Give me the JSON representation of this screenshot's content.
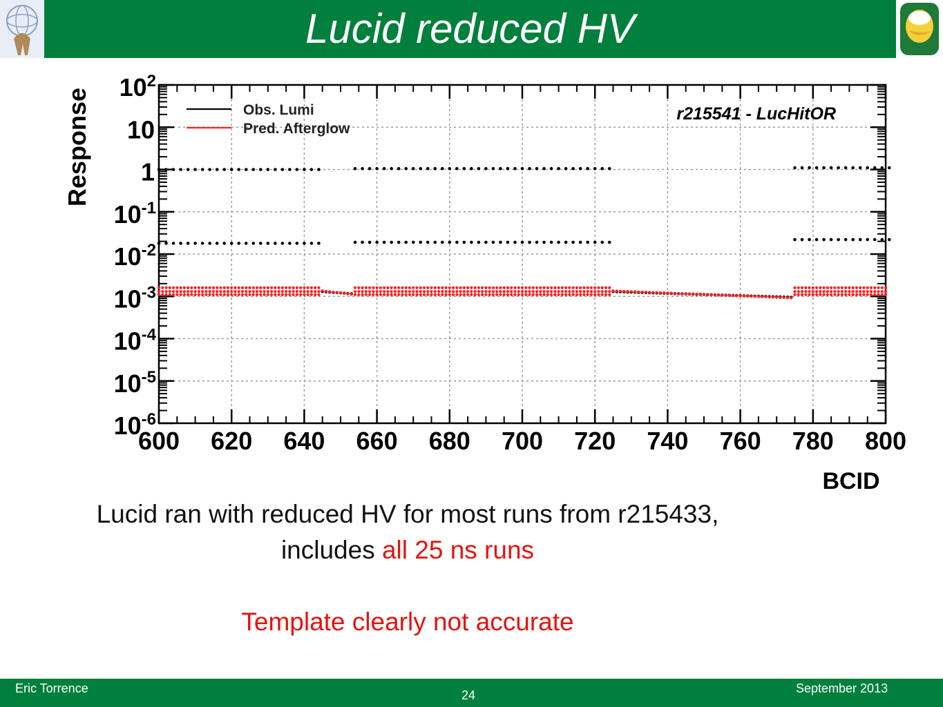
{
  "slide": {
    "title": "Lucid reduced HV",
    "line1": "Lucid ran with reduced HV for most runs from r215433,",
    "line2_a": "includes ",
    "line2_b": "all 25 ns runs",
    "line3": "Template clearly not accurate",
    "footer_left": "Eric Torrence",
    "footer_center": "24",
    "footer_right": "September 2013",
    "colors": {
      "header": "#00803c",
      "accent_red": "#e3140f"
    }
  },
  "chart_data": {
    "type": "scatter",
    "title": "r215541 - LucHitOR",
    "xlabel": "BCID",
    "ylabel": "Response",
    "xlim": [
      600,
      800
    ],
    "ylim": [
      1e-06,
      100
    ],
    "yscale": "log",
    "grid": true,
    "legend_placement": "top-left",
    "xticks": [
      "600",
      "620",
      "640",
      "660",
      "680",
      "700",
      "720",
      "740",
      "760",
      "780",
      "800"
    ],
    "yticks": [
      {
        "base": "10",
        "exp": "2"
      },
      {
        "base": "10",
        "exp": ""
      },
      {
        "base": "1",
        "exp": ""
      },
      {
        "base": "10",
        "exp": "-1"
      },
      {
        "base": "10",
        "exp": "-2"
      },
      {
        "base": "10",
        "exp": "-3"
      },
      {
        "base": "10",
        "exp": "-4"
      },
      {
        "base": "10",
        "exp": "-5"
      },
      {
        "base": "10",
        "exp": "-6"
      }
    ],
    "legend": [
      {
        "name": "Obs. Lumi",
        "color": "#000000"
      },
      {
        "name": "Pred. Afterglow",
        "color": "#ff2020"
      }
    ],
    "filled_ranges": [
      [
        600,
        644
      ],
      [
        654,
        724
      ],
      [
        775,
        800
      ]
    ],
    "series": [
      {
        "name": "Obs. Lumi",
        "color": "#000000",
        "level": "upper",
        "segments": [
          {
            "x0": 600,
            "x1": 644,
            "step": 2,
            "y": 1.0
          },
          {
            "x0": 654,
            "x1": 724,
            "step": 2,
            "y": 1.05
          },
          {
            "x0": 775,
            "x1": 800,
            "step": 2,
            "y": 1.1
          }
        ]
      },
      {
        "name": "Obs. Lumi",
        "color": "#000000",
        "level": "lower",
        "segments": [
          {
            "x0": 600,
            "x1": 644,
            "step": 2,
            "y": 0.018
          },
          {
            "x0": 654,
            "x1": 724,
            "step": 2,
            "y": 0.019
          },
          {
            "x0": 775,
            "x1": 800,
            "step": 2,
            "y": 0.022
          }
        ]
      },
      {
        "name": "Obs. Lumi",
        "color": "#000000",
        "level": "gap",
        "segments": [
          {
            "x0": 645,
            "x1": 653,
            "step": 1,
            "y0": 0.0013,
            "y1": 0.00115
          },
          {
            "x0": 725,
            "x1": 774,
            "step": 1,
            "y0": 0.0013,
            "y1": 0.00095
          }
        ]
      },
      {
        "name": "Pred. Afterglow",
        "color": "#ff2020",
        "level": "band",
        "segments": [
          {
            "x0": 600,
            "x1": 644,
            "step": 1,
            "y": [
              0.0016,
              0.0013,
              0.0011
            ]
          },
          {
            "x0": 654,
            "x1": 724,
            "step": 1,
            "y": [
              0.0016,
              0.0013,
              0.0011
            ]
          },
          {
            "x0": 775,
            "x1": 800,
            "step": 1,
            "y": [
              0.0016,
              0.0013,
              0.0011
            ]
          }
        ]
      },
      {
        "name": "Pred. Afterglow",
        "color": "#ff2020",
        "level": "gap",
        "segments": [
          {
            "x0": 645,
            "x1": 653,
            "step": 1,
            "y0": 0.00135,
            "y1": 0.00112
          },
          {
            "x0": 725,
            "x1": 774,
            "step": 1,
            "y0": 0.00135,
            "y1": 0.00092
          }
        ]
      }
    ]
  }
}
